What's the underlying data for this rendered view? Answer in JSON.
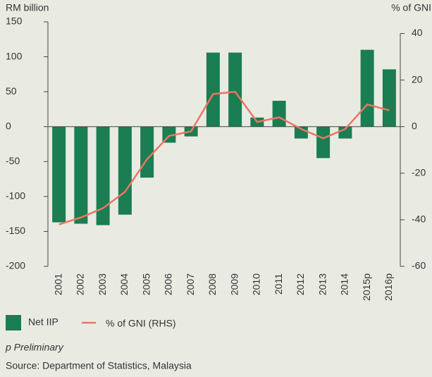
{
  "chart_data": {
    "type": "bar_line",
    "y_label": "RM billion",
    "y2_label": "% of GNI",
    "categories": [
      "2001",
      "2002",
      "2003",
      "2004",
      "2005",
      "2006",
      "2007",
      "2008",
      "2009",
      "2010",
      "2011",
      "2012",
      "2013",
      "2014",
      "2015p",
      "2016p"
    ],
    "series": [
      {
        "name": "Net IIP",
        "type": "bar",
        "color": "#1b7d52",
        "values": [
          -137,
          -139,
          -141,
          -126,
          -73,
          -23,
          -14,
          106,
          106,
          13,
          37,
          -17,
          -45,
          -17,
          110,
          82
        ]
      },
      {
        "name": "% of GNI (RHS)",
        "type": "line",
        "axis": "y2",
        "color": "#ec7563",
        "values": [
          -42,
          -39,
          -35,
          -28,
          -14,
          -4,
          -2,
          14,
          15,
          2,
          4,
          -1,
          -5,
          -1,
          9.5,
          7
        ]
      }
    ],
    "ylim": [
      -200,
      150
    ],
    "yticks": [
      -200,
      -150,
      -100,
      -50,
      0,
      50,
      100,
      150
    ],
    "y2lim": [
      -60,
      45
    ],
    "y2ticks": [
      -60,
      -40,
      -20,
      0,
      20,
      40
    ],
    "note": "p Preliminary",
    "source": "Source: Department of Statistics, Malaysia"
  }
}
